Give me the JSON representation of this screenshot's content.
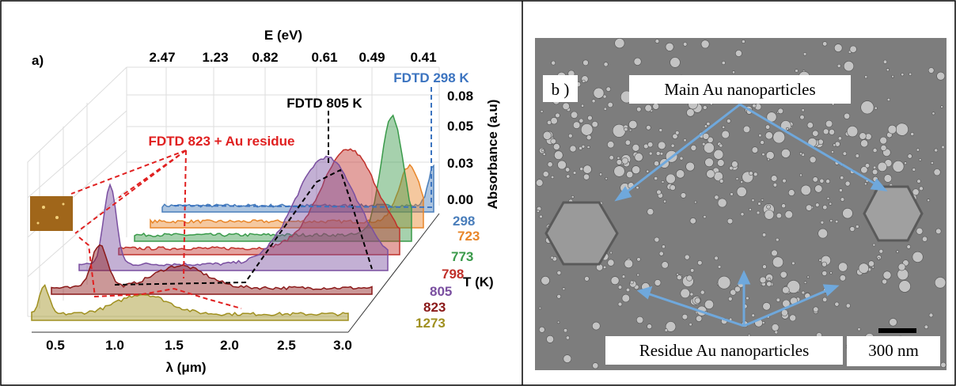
{
  "panel_a": {
    "label": "a)",
    "top_axis_title": "E (eV)",
    "top_ticks": [
      "2.47",
      "1.23",
      "0.82",
      "0.61",
      "0.49",
      "0.41"
    ],
    "right_axis_title": "Absorbance (a.u)",
    "right_ticks": [
      "0.08",
      "0.05",
      "0.03",
      "0.00"
    ],
    "bottom_axis_title": "λ (μm)",
    "bottom_ticks": [
      "0.5",
      "1.0",
      "1.5",
      "2.0",
      "2.5",
      "3.0"
    ],
    "depth_axis_title": "T (K)",
    "temperatures": [
      "298",
      "723",
      "773",
      "798",
      "805",
      "823",
      "1273"
    ],
    "annotations": [
      "FDTD 298 K",
      "FDTD 805 K",
      "FDTD 823 + Au residue"
    ]
  },
  "panel_b": {
    "label": "b )",
    "main_label": "Main Au nanoparticles",
    "residue_label": "Residue Au nanoparticles",
    "scale_bar": "300 nm"
  }
}
